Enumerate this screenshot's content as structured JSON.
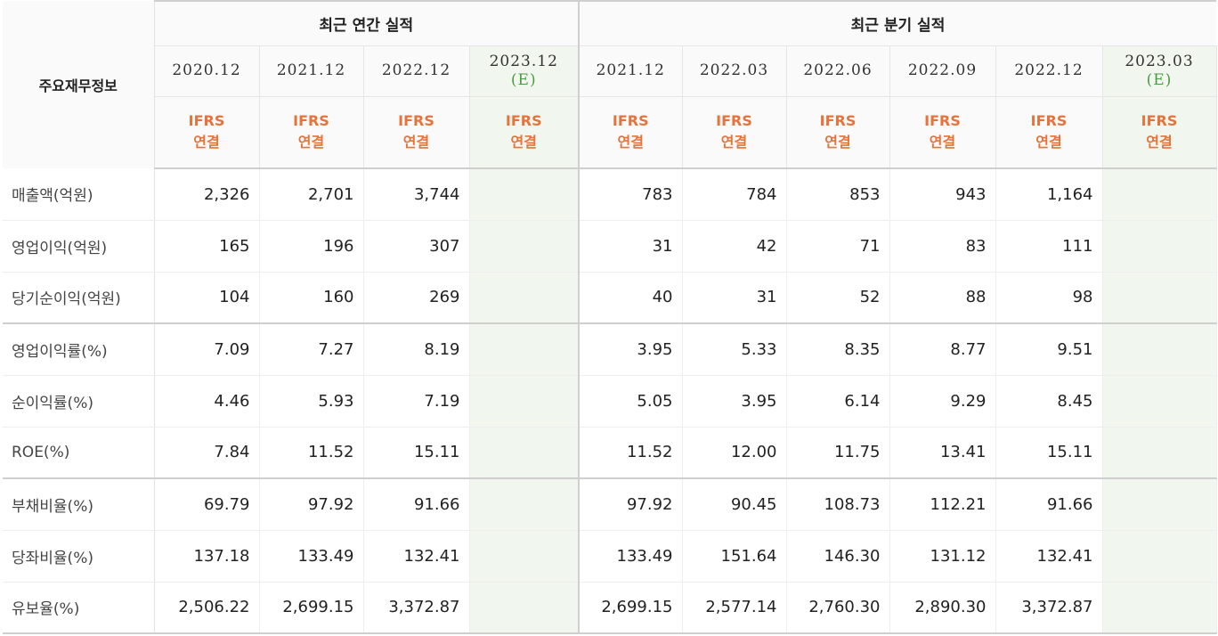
{
  "corner_label": "주요재무정보",
  "groups": {
    "annual": "최근 연간 실적",
    "quarter": "최근 분기 실적"
  },
  "columns": [
    {
      "date": "2020.12",
      "est": "",
      "ifrs1": "IFRS",
      "ifrs2": "연결"
    },
    {
      "date": "2021.12",
      "est": "",
      "ifrs1": "IFRS",
      "ifrs2": "연결"
    },
    {
      "date": "2022.12",
      "est": "",
      "ifrs1": "IFRS",
      "ifrs2": "연결"
    },
    {
      "date": "2023.12",
      "est": "(E)",
      "ifrs1": "IFRS",
      "ifrs2": "연결"
    },
    {
      "date": "2021.12",
      "est": "",
      "ifrs1": "IFRS",
      "ifrs2": "연결"
    },
    {
      "date": "2022.03",
      "est": "",
      "ifrs1": "IFRS",
      "ifrs2": "연결"
    },
    {
      "date": "2022.06",
      "est": "",
      "ifrs1": "IFRS",
      "ifrs2": "연결"
    },
    {
      "date": "2022.09",
      "est": "",
      "ifrs1": "IFRS",
      "ifrs2": "연결"
    },
    {
      "date": "2022.12",
      "est": "",
      "ifrs1": "IFRS",
      "ifrs2": "연결"
    },
    {
      "date": "2023.03",
      "est": "(E)",
      "ifrs1": "IFRS",
      "ifrs2": "연결"
    }
  ],
  "rows": [
    {
      "label": "매출액(억원)",
      "values": [
        "2,326",
        "2,701",
        "3,744",
        "",
        "783",
        "784",
        "853",
        "943",
        "1,164",
        ""
      ]
    },
    {
      "label": "영업이익(억원)",
      "values": [
        "165",
        "196",
        "307",
        "",
        "31",
        "42",
        "71",
        "83",
        "111",
        ""
      ]
    },
    {
      "label": "당기순이익(억원)",
      "values": [
        "104",
        "160",
        "269",
        "",
        "40",
        "31",
        "52",
        "88",
        "98",
        ""
      ]
    },
    {
      "label": "영업이익률(%)",
      "values": [
        "7.09",
        "7.27",
        "8.19",
        "",
        "3.95",
        "5.33",
        "8.35",
        "8.77",
        "9.51",
        ""
      ]
    },
    {
      "label": "순이익률(%)",
      "values": [
        "4.46",
        "5.93",
        "7.19",
        "",
        "5.05",
        "3.95",
        "6.14",
        "9.29",
        "8.45",
        ""
      ]
    },
    {
      "label": "ROE(%)",
      "values": [
        "7.84",
        "11.52",
        "15.11",
        "",
        "11.52",
        "12.00",
        "11.75",
        "13.41",
        "15.11",
        ""
      ]
    },
    {
      "label": "부채비율(%)",
      "values": [
        "69.79",
        "97.92",
        "91.66",
        "",
        "97.92",
        "90.45",
        "108.73",
        "112.21",
        "91.66",
        ""
      ]
    },
    {
      "label": "당좌비율(%)",
      "values": [
        "137.18",
        "133.49",
        "132.41",
        "",
        "133.49",
        "151.64",
        "146.30",
        "131.12",
        "132.41",
        ""
      ]
    },
    {
      "label": "유보율(%)",
      "values": [
        "2,506.22",
        "2,699.15",
        "3,372.87",
        "",
        "2,699.15",
        "2,577.14",
        "2,760.30",
        "2,890.30",
        "3,372.87",
        ""
      ]
    }
  ]
}
